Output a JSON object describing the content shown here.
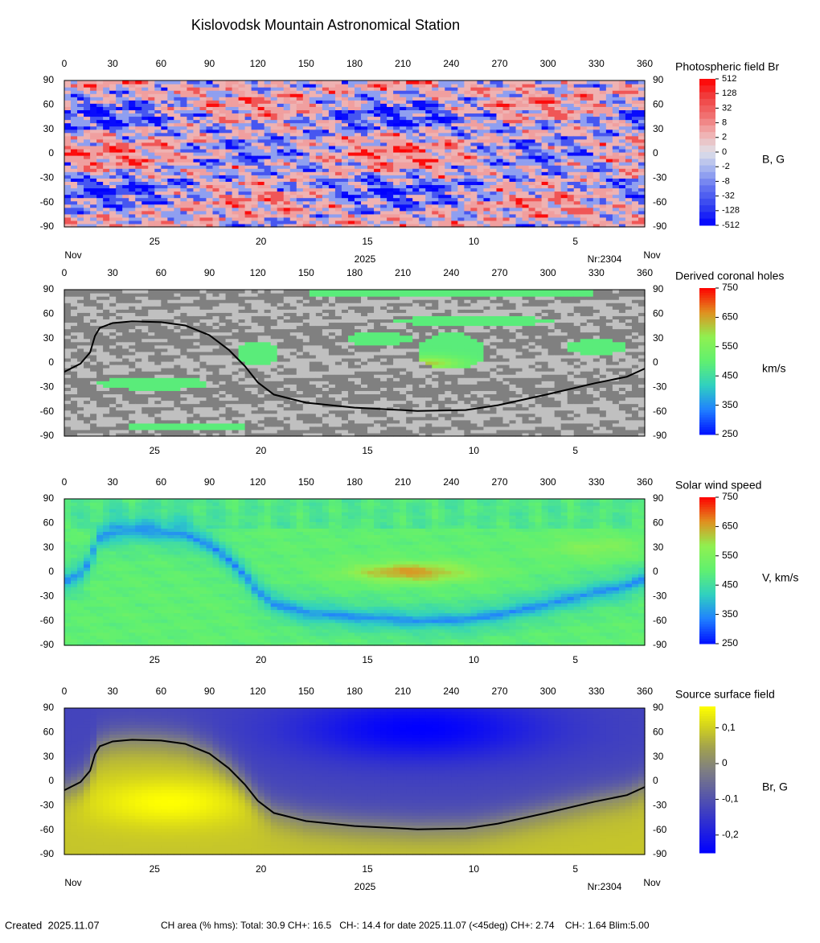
{
  "title": "Kislovodsk Mountain Astronomical Station",
  "footer": {
    "created": "Created  2025.11.07",
    "ch_area": "CH area (% hms): Total: 30.9 CH+: 16.5   CH-: 14.4 for date 2025.11.07 (<45deg) CH+: 2.74    CH-: 1.64 Blim:5.00"
  },
  "chart_data": [
    {
      "type": "heatmap",
      "title": "Photospheric field Br",
      "unit_label": "B, G",
      "xlim": [
        0,
        360
      ],
      "xticks": [
        0,
        30,
        60,
        90,
        120,
        150,
        180,
        210,
        240,
        270,
        300,
        330,
        360
      ],
      "ylim": [
        -90,
        90
      ],
      "yticks": [
        90,
        60,
        30,
        0,
        -30,
        -60,
        -90
      ],
      "x2ticks": [
        {
          "value": 56,
          "label": "25"
        },
        {
          "value": 122,
          "label": "20"
        },
        {
          "value": 188,
          "label": "15"
        },
        {
          "value": 254,
          "label": "10"
        },
        {
          "value": 317,
          "label": "5"
        }
      ],
      "date_labels": {
        "month_left": "Nov",
        "year": "2025",
        "rotation": "Nr:2304",
        "month_right": "Nov"
      },
      "clim": [
        -512,
        512
      ],
      "cscale": "symlog",
      "clog_base": 4,
      "clinthresh": 2,
      "cticks": [
        512,
        128,
        32,
        8,
        2,
        0,
        -2,
        -8,
        -32,
        -128,
        -512
      ],
      "cmap": [
        "#0000ff",
        "#3040f0",
        "#6070f0",
        "#a0b0f0",
        "#e0e0e8",
        "#f0b0b0",
        "#f07070",
        "#f04040",
        "#ff0000"
      ]
    },
    {
      "type": "heatmap",
      "title": "Derived coronal holes",
      "unit_label": "km/s",
      "xlim": [
        0,
        360
      ],
      "xticks": [
        0,
        30,
        60,
        90,
        120,
        150,
        180,
        210,
        240,
        270,
        300,
        330,
        360
      ],
      "ylim": [
        -90,
        90
      ],
      "yticks": [
        90,
        60,
        30,
        0,
        -30,
        -60,
        -90
      ],
      "x2ticks": [
        {
          "value": 56,
          "label": "25"
        },
        {
          "value": 122,
          "label": "20"
        },
        {
          "value": 188,
          "label": "15"
        },
        {
          "value": 254,
          "label": "10"
        },
        {
          "value": 317,
          "label": "5"
        }
      ],
      "clim": [
        250,
        750
      ],
      "cticks": [
        750,
        650,
        550,
        450,
        350,
        250
      ],
      "cmap": [
        "#0010ff",
        "#2080ff",
        "#30d0c0",
        "#60f070",
        "#90f050",
        "#e09020",
        "#ff0000"
      ],
      "neutral_line": {
        "x": [
          0,
          10,
          16,
          19,
          22,
          30,
          42,
          60,
          75,
          90,
          102,
          112,
          120,
          130,
          150,
          180,
          219,
          249,
          269,
          299,
          329,
          349,
          360
        ],
        "y": [
          -11,
          -1,
          13,
          33,
          43,
          49,
          51,
          50,
          46,
          34,
          16,
          -4,
          -24,
          -39,
          -49,
          -55,
          -59,
          -58,
          -52,
          -39,
          -25,
          -17,
          -7
        ]
      }
    },
    {
      "type": "heatmap",
      "title": "Solar wind speed",
      "unit_label": "V, km/s",
      "xlim": [
        0,
        360
      ],
      "xticks": [
        0,
        30,
        60,
        90,
        120,
        150,
        180,
        210,
        240,
        270,
        300,
        330,
        360
      ],
      "ylim": [
        -90,
        90
      ],
      "yticks": [
        90,
        60,
        30,
        0,
        -30,
        -60,
        -90
      ],
      "x2ticks": [
        {
          "value": 56,
          "label": "25"
        },
        {
          "value": 122,
          "label": "20"
        },
        {
          "value": 188,
          "label": "15"
        },
        {
          "value": 254,
          "label": "10"
        },
        {
          "value": 317,
          "label": "5"
        }
      ],
      "clim": [
        250,
        750
      ],
      "cticks": [
        750,
        650,
        550,
        450,
        350,
        250
      ],
      "cmap": [
        "#0010ff",
        "#2080ff",
        "#30d0c0",
        "#60f070",
        "#90f050",
        "#e09020",
        "#ff0000"
      ]
    },
    {
      "type": "heatmap",
      "title": "Source surface field",
      "unit_label": "Br, G",
      "xlim": [
        0,
        360
      ],
      "xticks": [
        0,
        30,
        60,
        90,
        120,
        150,
        180,
        210,
        240,
        270,
        300,
        330,
        360
      ],
      "ylim": [
        -90,
        90
      ],
      "yticks": [
        90,
        60,
        30,
        0,
        -30,
        -60,
        -90
      ],
      "x2ticks": [
        {
          "value": 56,
          "label": "25"
        },
        {
          "value": 122,
          "label": "20"
        },
        {
          "value": 188,
          "label": "15"
        },
        {
          "value": 254,
          "label": "10"
        },
        {
          "value": 317,
          "label": "5"
        }
      ],
      "date_labels": {
        "month_left": "Nov",
        "year": "2025",
        "rotation": "Nr:2304",
        "month_right": "Nov"
      },
      "clim": [
        -0.25,
        0.16
      ],
      "cticks": [
        {
          "value": 0.1,
          "label": "0,1"
        },
        0,
        {
          "value": -0.1,
          "label": "-0,1"
        },
        {
          "value": -0.2,
          "label": "-0,2"
        }
      ],
      "cmap": [
        "#0000ff",
        "#2020e0",
        "#4040c0",
        "#6060a0",
        "#808080",
        "#a0a050",
        "#d0d020",
        "#ffff00"
      ],
      "neutral_line": {
        "x": [
          0,
          10,
          16,
          19,
          22,
          30,
          42,
          60,
          75,
          90,
          102,
          112,
          120,
          130,
          150,
          180,
          219,
          249,
          269,
          299,
          329,
          349,
          360
        ],
        "y": [
          -11,
          -1,
          13,
          33,
          43,
          49,
          51,
          50,
          46,
          34,
          16,
          -4,
          -24,
          -39,
          -49,
          -55,
          -59,
          -58,
          -52,
          -39,
          -25,
          -17,
          -7
        ]
      }
    }
  ]
}
